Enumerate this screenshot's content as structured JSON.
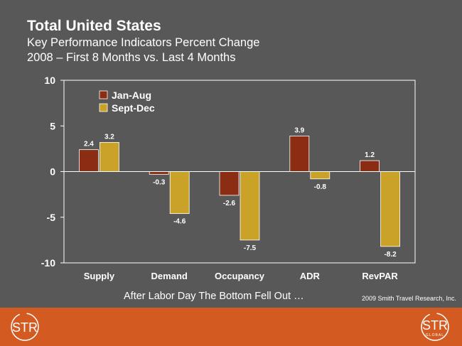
{
  "header": {
    "title": "Total United States",
    "subtitle_line1": "Key Performance Indicators Percent Change",
    "subtitle_line2": "2008 – First 8 Months vs. Last 4 Months"
  },
  "chart_data": {
    "type": "bar",
    "categories": [
      "Supply",
      "Demand",
      "Occupancy",
      "ADR",
      "RevPAR"
    ],
    "series": [
      {
        "name": "Jan-Aug",
        "color": "#8b2d12",
        "values": [
          2.4,
          -0.3,
          -2.6,
          3.9,
          1.2
        ]
      },
      {
        "name": "Sept-Dec",
        "color": "#c9a227",
        "values": [
          3.2,
          -4.6,
          -7.5,
          -0.8,
          -8.2
        ]
      }
    ],
    "ylim": [
      -10,
      10
    ],
    "yticks": [
      10,
      5,
      0,
      -5,
      -10
    ],
    "legend_position": "top-left",
    "xlabel": "",
    "ylabel": ""
  },
  "footer": {
    "caption": "After Labor Day The Bottom Fell Out …",
    "copyright": "2009 Smith Travel Research, Inc.",
    "logo_left": "STR",
    "logo_right": "STR",
    "logo_right_sub": "GLOBAL"
  }
}
